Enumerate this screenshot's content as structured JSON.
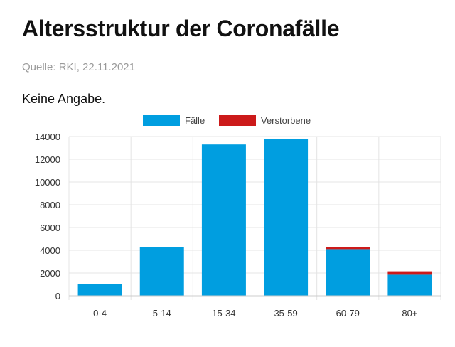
{
  "header": {
    "title": "Altersstruktur der Coronafälle",
    "source": "Quelle: RKI, 22.11.2021",
    "subtitle": "Keine Angabe."
  },
  "colors": {
    "faelle": "#009ee0",
    "verstorbene": "#cc1a1a",
    "grid": "#e4e4e4",
    "text": "#333333"
  },
  "chart_data": {
    "type": "bar",
    "stacked": true,
    "categories": [
      "0-4",
      "5-14",
      "15-34",
      "35-59",
      "60-79",
      "80+"
    ],
    "series": [
      {
        "name": "Fälle",
        "values": [
          1050,
          4250,
          13300,
          13750,
          4100,
          1850
        ]
      },
      {
        "name": "Verstorbene",
        "values": [
          0,
          0,
          0,
          50,
          200,
          300
        ]
      }
    ],
    "title": "Altersstruktur der Coronafälle",
    "xlabel": "",
    "ylabel": "",
    "ylim": [
      0,
      14000
    ],
    "yticks": [
      0,
      2000,
      4000,
      6000,
      8000,
      10000,
      12000,
      14000
    ],
    "grid": true,
    "legend_position": "top-center"
  }
}
